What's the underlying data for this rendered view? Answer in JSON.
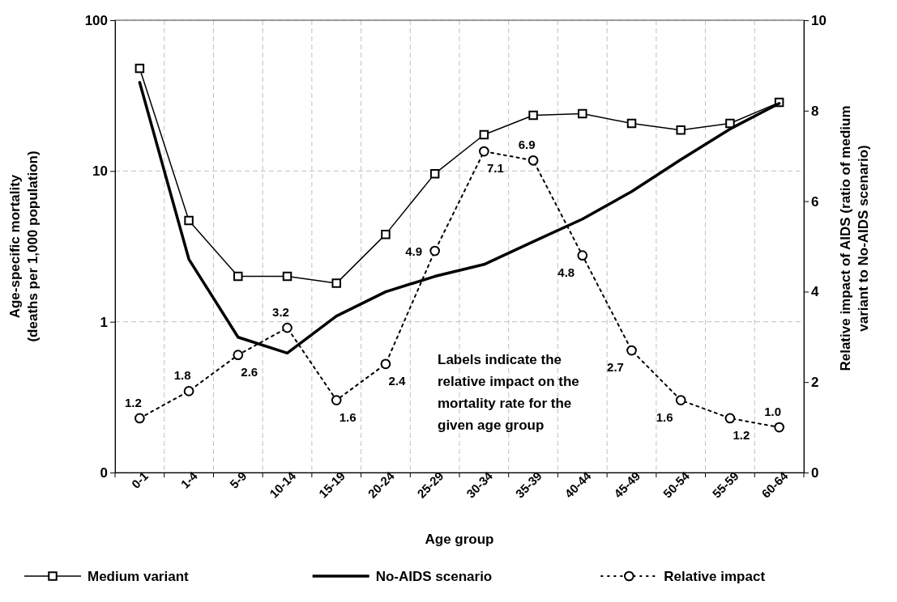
{
  "chart_data": {
    "type": "line",
    "xlabel": "Age group",
    "ylabel": "Age-specific mortality (deaths per 1,000 population)",
    "y2label": "Relative impact of AIDS (ratio of medium variant to No-AIDS scenario)",
    "categories": [
      "0-1",
      "1-4",
      "5-9",
      "10-14",
      "15-19",
      "20-24",
      "25-29",
      "30-34",
      "35-39",
      "40-44",
      "45-49",
      "50-54",
      "55-59",
      "60-64"
    ],
    "series": [
      {
        "name": "Medium variant",
        "color": "#000000",
        "marker": "square",
        "line_style": "solid",
        "values": [
          48,
          4.7,
          2.0,
          2.0,
          1.8,
          3.8,
          9.6,
          17.4,
          23.4,
          24,
          20.7,
          18.7,
          20.7,
          28.5
        ]
      },
      {
        "name": "No-AIDS scenario",
        "color": "#000000",
        "marker": "none",
        "line_style": "solid",
        "values": [
          38.7,
          2.6,
          0.79,
          0.62,
          1.09,
          1.58,
          2.0,
          2.4,
          3.4,
          4.8,
          7.3,
          11.9,
          19,
          28.1
        ]
      },
      {
        "name": "Relative impact",
        "color": "#000000",
        "marker": "circle",
        "line_style": "dotted",
        "axis": "y2",
        "value_labels": [
          "1.2",
          "1.8",
          "2.6",
          "3.2",
          "1.6",
          "2.4",
          "4.9",
          "7.1",
          "6.9",
          "4.8",
          "2.7",
          "1.6",
          "1.2",
          "1.0"
        ],
        "values": [
          1.2,
          1.8,
          2.6,
          3.2,
          1.6,
          2.4,
          4.9,
          7.1,
          6.9,
          4.8,
          2.7,
          1.6,
          1.2,
          1.0
        ]
      }
    ],
    "log": "y",
    "ylim": [
      0.1,
      100
    ],
    "yticks": [
      {
        "value": 0.1,
        "label": "0"
      },
      1,
      10,
      100
    ],
    "y2lim": [
      0,
      10
    ],
    "y2ticks": [
      0,
      2,
      4,
      6,
      8,
      10
    ],
    "grid": true,
    "legend": "bottom",
    "annotations": [
      "Labels indicate the relative impact on the mortality rate for the given age group"
    ]
  }
}
